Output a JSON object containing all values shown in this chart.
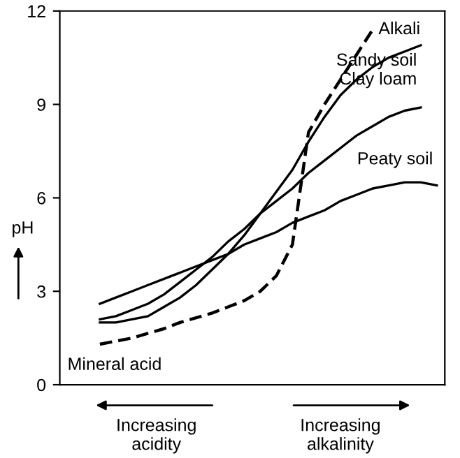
{
  "chart_data": {
    "type": "line",
    "ylabel": "pH",
    "ylim": [
      0,
      12
    ],
    "yticks": [
      0,
      3,
      6,
      9,
      12
    ],
    "grid": false,
    "legend": false,
    "marker": "none",
    "categories": [
      null,
      null,
      null,
      null,
      null,
      null,
      null,
      null,
      null,
      null,
      null,
      null,
      null,
      null,
      null,
      null,
      null,
      null,
      null,
      null,
      null,
      null,
      null,
      null
    ],
    "series": [
      {
        "name": "Alkali",
        "color": "#000000",
        "line_style": "dashed",
        "values": [
          null,
          null,
          1.3,
          1.4,
          1.5,
          1.65,
          1.8,
          2.0,
          2.15,
          2.3,
          2.5,
          2.7,
          3.0,
          3.5,
          4.5,
          8.1,
          9.0,
          9.8,
          10.6,
          11.4,
          null,
          null,
          null,
          null
        ]
      },
      {
        "name": "Sandy soil",
        "color": "#000000",
        "line_style": "solid",
        "values": [
          null,
          null,
          2.0,
          2.0,
          2.1,
          2.2,
          2.5,
          2.8,
          3.2,
          3.7,
          4.2,
          4.8,
          5.5,
          6.2,
          6.9,
          7.8,
          8.6,
          9.3,
          9.8,
          10.2,
          10.5,
          10.7,
          10.9,
          null
        ]
      },
      {
        "name": "Clay loam",
        "color": "#000000",
        "line_style": "solid",
        "values": [
          null,
          null,
          2.1,
          2.2,
          2.4,
          2.6,
          2.9,
          3.3,
          3.7,
          4.1,
          4.6,
          5.0,
          5.5,
          5.9,
          6.3,
          6.8,
          7.2,
          7.6,
          8.0,
          8.3,
          8.6,
          8.8,
          8.9,
          null
        ]
      },
      {
        "name": "Peaty soil",
        "color": "#000000",
        "line_style": "solid",
        "values": [
          null,
          null,
          2.6,
          2.8,
          3.0,
          3.2,
          3.4,
          3.6,
          3.8,
          4.0,
          4.2,
          4.5,
          4.7,
          4.9,
          5.2,
          5.4,
          5.6,
          5.9,
          6.1,
          6.3,
          6.4,
          6.5,
          6.5,
          6.4
        ]
      }
    ],
    "annotations": [
      "Mineral acid",
      "Increasing\nacidity",
      "Increasing\nalkalinity"
    ]
  }
}
